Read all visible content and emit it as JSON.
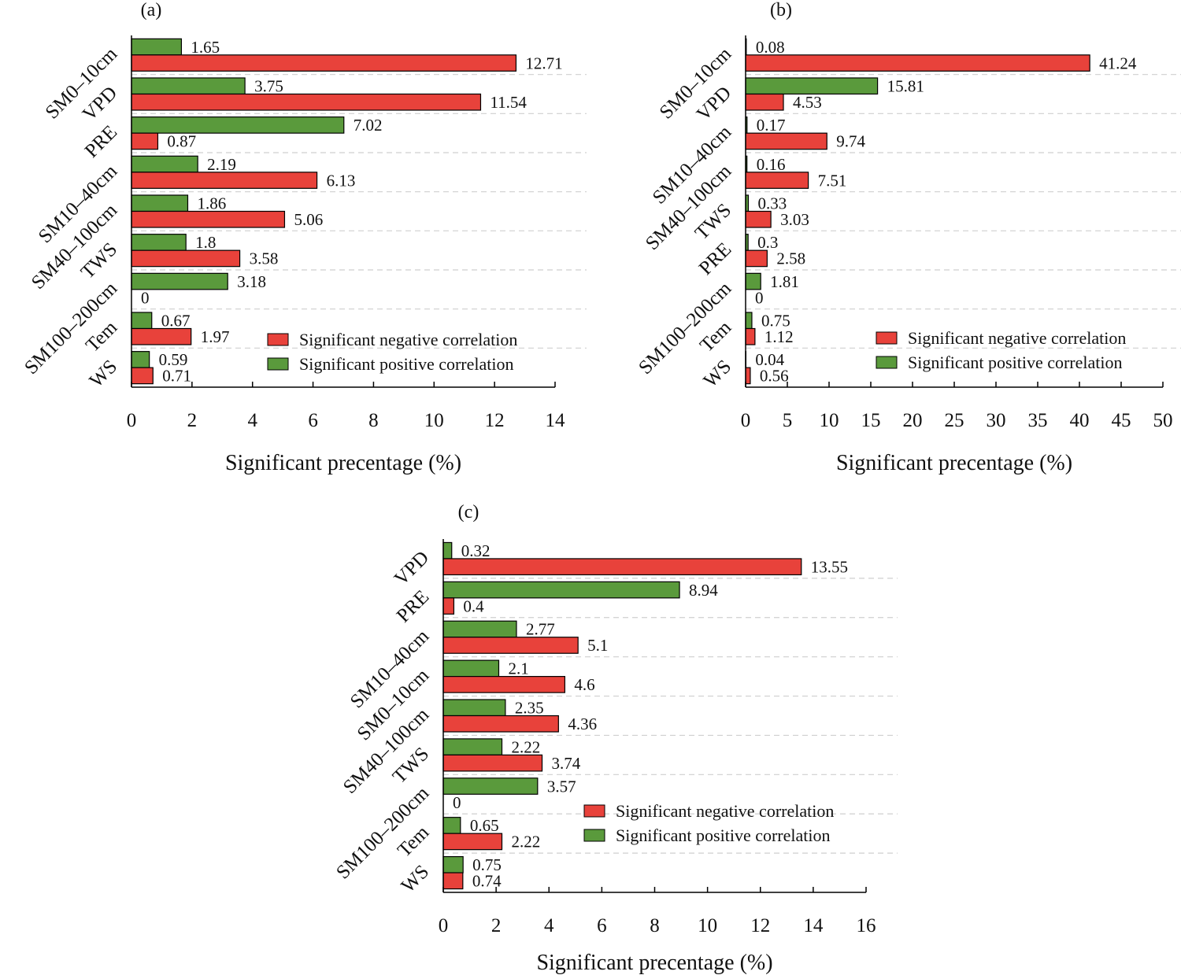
{
  "colors": {
    "negative": "#e8423b",
    "positive": "#5a9a3c",
    "axis": "#000000",
    "grid": "#cfcfcf"
  },
  "legend": {
    "negative": "Significant negative correlation",
    "positive": "Significant positive correlation"
  },
  "chart_data": [
    {
      "type": "bar",
      "orientation": "horizontal",
      "panel": "(a)",
      "xlabel": "Significant precentage (%)",
      "xlim": [
        0,
        14
      ],
      "xticks": [
        0,
        2,
        4,
        6,
        8,
        10,
        12,
        14
      ],
      "categories": [
        "SM0–10cm",
        "VPD",
        "PRE",
        "SM10–40cm",
        "SM40–100cm",
        "TWS",
        "SM100–200cm",
        "Tem",
        "WS"
      ],
      "series": [
        {
          "name": "Significant positive correlation",
          "values": [
            1.65,
            3.75,
            7.02,
            2.19,
            1.86,
            1.8,
            3.18,
            0.67,
            0.59
          ],
          "labels": [
            "1.65",
            "3.75",
            "7.02",
            "2.19",
            "1.86",
            "1.8",
            "3.18",
            "0.67",
            "0.59"
          ]
        },
        {
          "name": "Significant negative correlation",
          "values": [
            12.71,
            11.54,
            0.87,
            6.13,
            5.06,
            3.58,
            0,
            1.97,
            0.71
          ],
          "labels": [
            "12.71",
            "11.54",
            "0.87",
            "6.13",
            "5.06",
            "3.58",
            "0",
            "1.97",
            "0.71"
          ]
        }
      ],
      "grid": "horizontal dashed",
      "legend_position": "bottom-right"
    },
    {
      "type": "bar",
      "orientation": "horizontal",
      "panel": "(b)",
      "xlabel": "Significant precentage (%)",
      "xlim": [
        0,
        50
      ],
      "xticks": [
        0,
        5,
        10,
        15,
        20,
        25,
        30,
        35,
        40,
        45,
        50
      ],
      "categories": [
        "SM0–10cm",
        "VPD",
        "SM10–40cm",
        "SM40–100cm",
        "TWS",
        "PRE",
        "SM100–200cm",
        "Tem",
        "WS"
      ],
      "series": [
        {
          "name": "Significant positive correlation",
          "values": [
            0.08,
            15.81,
            0.17,
            0.16,
            0.33,
            0.3,
            1.81,
            0.75,
            0.04
          ],
          "labels": [
            "0.08",
            "15.81",
            "0.17",
            "0.16",
            "0.33",
            "0.3",
            "1.81",
            "0.75",
            "0.04"
          ]
        },
        {
          "name": "Significant negative correlation",
          "values": [
            41.24,
            4.53,
            9.74,
            7.51,
            3.03,
            2.58,
            0,
            1.12,
            0.56
          ],
          "labels": [
            "41.24",
            "4.53",
            "9.74",
            "7.51",
            "3.03",
            "2.58",
            "0",
            "1.12",
            "0.56"
          ]
        }
      ],
      "grid": "horizontal dashed",
      "legend_position": "bottom-right"
    },
    {
      "type": "bar",
      "orientation": "horizontal",
      "panel": "(c)",
      "xlabel": "Significant precentage (%)",
      "xlim": [
        0,
        16
      ],
      "xticks": [
        0,
        2,
        4,
        6,
        8,
        10,
        12,
        14,
        16
      ],
      "categories": [
        "VPD",
        "PRE",
        "SM10–40cm",
        "SM0–10cm",
        "SM40–100cm",
        "TWS",
        "SM100–200cm",
        "Tem",
        "WS"
      ],
      "series": [
        {
          "name": "Significant positive correlation",
          "values": [
            0.32,
            8.94,
            2.77,
            2.1,
            2.35,
            2.22,
            3.57,
            0.65,
            0.75
          ],
          "labels": [
            "0.32",
            "8.94",
            "2.77",
            "2.1",
            "2.35",
            "2.22",
            "3.57",
            "0.65",
            "0.75"
          ]
        },
        {
          "name": "Significant negative correlation",
          "values": [
            13.55,
            0.4,
            5.1,
            4.6,
            4.36,
            3.74,
            0,
            2.22,
            0.74
          ],
          "labels": [
            "13.55",
            "0.4",
            "5.1",
            "4.6",
            "4.36",
            "3.74",
            "0",
            "2.22",
            "0.74"
          ]
        }
      ],
      "grid": "horizontal dashed",
      "legend_position": "bottom-right"
    }
  ]
}
